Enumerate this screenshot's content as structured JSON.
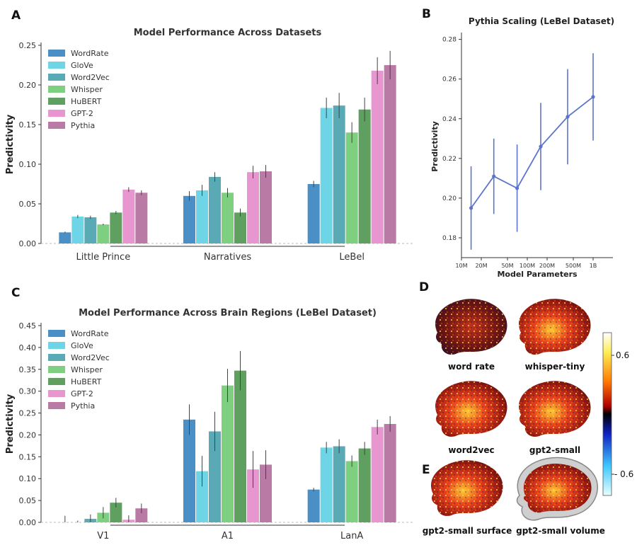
{
  "panels": {
    "A": "A",
    "B": "B",
    "C": "C",
    "D": "D",
    "E": "E"
  },
  "chart_data": [
    {
      "id": "A",
      "type": "bar",
      "title": "Model Performance Across Datasets",
      "ylabel": "Predictivity",
      "xlabel": "",
      "ylim": [
        0,
        0.25
      ],
      "yticks": [
        "0.00",
        "0.05",
        "0.10",
        "0.15",
        "0.20",
        "0.25"
      ],
      "categories": [
        "Little Prince",
        "Narratives",
        "LeBel"
      ],
      "legend_position": "top-left",
      "series": [
        {
          "name": "WordRate",
          "color": "#4a8fc6",
          "values": [
            0.014,
            0.06,
            0.075
          ],
          "errors": [
            0.001,
            0.006,
            0.004
          ]
        },
        {
          "name": "GloVe",
          "color": "#6dd5e6",
          "values": [
            0.034,
            0.067,
            0.171
          ],
          "errors": [
            0.002,
            0.007,
            0.013
          ]
        },
        {
          "name": "Word2Vec",
          "color": "#5aaab6",
          "values": [
            0.033,
            0.084,
            0.174
          ],
          "errors": [
            0.002,
            0.006,
            0.016
          ]
        },
        {
          "name": "Whisper",
          "color": "#7fcf80",
          "values": [
            0.024,
            0.064,
            0.14
          ],
          "errors": [
            0.001,
            0.006,
            0.013
          ]
        },
        {
          "name": "HuBERT",
          "color": "#5f9f60",
          "values": [
            0.039,
            0.039,
            0.169
          ],
          "errors": [
            0.002,
            0.005,
            0.015
          ]
        },
        {
          "name": "GPT-2",
          "color": "#e896cf",
          "values": [
            0.068,
            0.09,
            0.218
          ],
          "errors": [
            0.003,
            0.008,
            0.017
          ]
        },
        {
          "name": "Pythia",
          "color": "#b97aa6",
          "values": [
            0.064,
            0.091,
            0.225
          ],
          "errors": [
            0.003,
            0.008,
            0.018
          ]
        }
      ]
    },
    {
      "id": "B",
      "type": "line",
      "title": "Pythia Scaling (LeBel Dataset)",
      "xlabel": "Model Parameters",
      "ylabel": "Predictivity",
      "xscale": "log",
      "xlim": [
        10000000,
        2000000000
      ],
      "ylim": [
        0.17,
        0.282
      ],
      "xticks": [
        {
          "label": "10M",
          "value": 10000000
        },
        {
          "label": "20M",
          "value": 20000000
        },
        {
          "label": "50M",
          "value": 50000000
        },
        {
          "label": "100M",
          "value": 100000000
        },
        {
          "label": "200M",
          "value": 200000000
        },
        {
          "label": "500M",
          "value": 500000000
        },
        {
          "label": "1B",
          "value": 1000000000
        }
      ],
      "yticks": [
        "0.18",
        "0.20",
        "0.22",
        "0.24",
        "0.26",
        "0.28"
      ],
      "color": "#5c75cc",
      "x": [
        14000000,
        31000000,
        70000000,
        160000000,
        410000000,
        1000000000
      ],
      "y": [
        0.195,
        0.211,
        0.205,
        0.226,
        0.241,
        0.251
      ],
      "errors": [
        0.021,
        0.019,
        0.022,
        0.022,
        0.024,
        0.022
      ]
    },
    {
      "id": "C",
      "type": "bar",
      "title": "Model Performance Across Brain Regions (LeBel Dataset)",
      "ylabel": "Predictivity",
      "xlabel": "",
      "ylim": [
        0,
        0.45
      ],
      "yticks": [
        "0.00",
        "0.05",
        "0.10",
        "0.15",
        "0.20",
        "0.25",
        "0.30",
        "0.35",
        "0.40",
        "0.45"
      ],
      "categories": [
        "V1",
        "A1",
        "LanA"
      ],
      "legend_position": "top-left",
      "series": [
        {
          "name": "WordRate",
          "color": "#4a8fc6",
          "values": [
            0.0,
            0.235,
            0.075
          ],
          "errors": [
            0.015,
            0.035,
            0.004
          ]
        },
        {
          "name": "GloVe",
          "color": "#6dd5e6",
          "values": [
            0.0,
            0.117,
            0.171
          ],
          "errors": [
            0.004,
            0.035,
            0.013
          ]
        },
        {
          "name": "Word2Vec",
          "color": "#5aaab6",
          "values": [
            0.008,
            0.208,
            0.174
          ],
          "errors": [
            0.01,
            0.045,
            0.016
          ]
        },
        {
          "name": "Whisper",
          "color": "#7fcf80",
          "values": [
            0.022,
            0.313,
            0.14
          ],
          "errors": [
            0.013,
            0.038,
            0.013
          ]
        },
        {
          "name": "HuBERT",
          "color": "#5f9f60",
          "values": [
            0.045,
            0.347,
            0.169
          ],
          "errors": [
            0.011,
            0.045,
            0.015
          ]
        },
        {
          "name": "GPT-2",
          "color": "#e896cf",
          "values": [
            0.006,
            0.121,
            0.218
          ],
          "errors": [
            0.01,
            0.042,
            0.017
          ]
        },
        {
          "name": "Pythia",
          "color": "#b97aa6",
          "values": [
            0.032,
            0.132,
            0.225
          ],
          "errors": [
            0.011,
            0.033,
            0.018
          ]
        }
      ]
    }
  ],
  "brains": {
    "captions": [
      "word rate",
      "whisper-tiny",
      "word2vec",
      "gpt2-small",
      "gpt2-small surface",
      "gpt2-small volume"
    ],
    "colorbar": {
      "top_label": "0.6",
      "bottom_label": "- 0.6"
    }
  }
}
